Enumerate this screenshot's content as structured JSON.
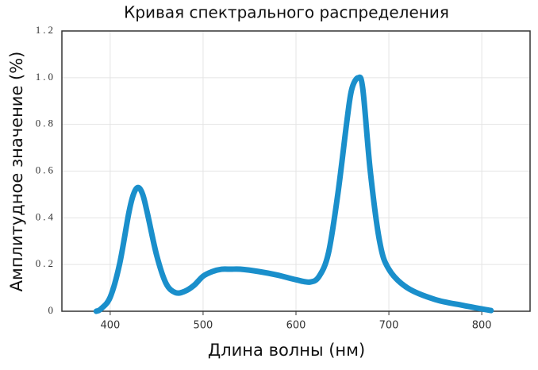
{
  "chart_data": {
    "type": "line",
    "title": "Кривая спектрального распределения",
    "x_label": "Длина волны (нм)",
    "y_label": "Амплитудное значение (%)",
    "xlim": [
      348,
      852
    ],
    "ylim": [
      0,
      1.2
    ],
    "xticks": [
      400,
      500,
      600,
      700,
      800
    ],
    "yticks": [
      0,
      0.2,
      0.4,
      0.6,
      0.8,
      {
        "value": 1,
        "label": "1.0"
      },
      1.2
    ],
    "grid": true,
    "series": [
      {
        "color": "#1a8fcb",
        "x": [
          385,
          390,
          400,
          410,
          420,
          425,
          430,
          435,
          440,
          450,
          460,
          470,
          480,
          490,
          500,
          510,
          520,
          530,
          540,
          560,
          580,
          600,
          615,
          625,
          635,
          645,
          655,
          660,
          667,
          672,
          680,
          690,
          700,
          720,
          750,
          780,
          810
        ],
        "values": [
          0,
          0.01,
          0.06,
          0.2,
          0.42,
          0.5,
          0.53,
          0.5,
          0.42,
          0.24,
          0.12,
          0.08,
          0.085,
          0.11,
          0.15,
          0.17,
          0.18,
          0.18,
          0.18,
          0.17,
          0.155,
          0.135,
          0.125,
          0.15,
          0.25,
          0.5,
          0.82,
          0.95,
          1,
          0.95,
          0.6,
          0.3,
          0.18,
          0.1,
          0.05,
          0.025,
          0.003
        ]
      }
    ]
  }
}
